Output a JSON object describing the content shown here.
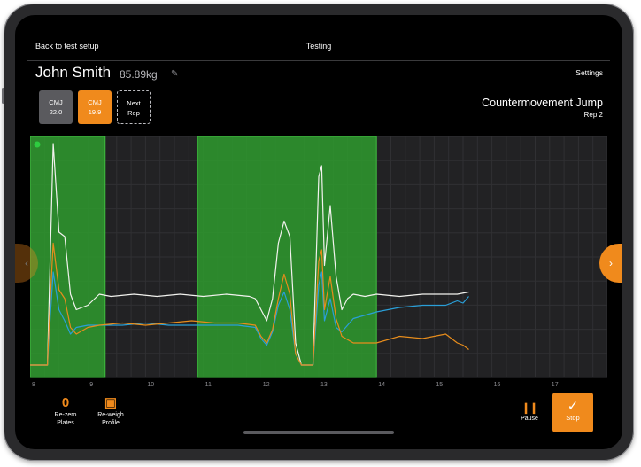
{
  "topbar": {
    "back_label": "Back to test setup",
    "title": "Testing"
  },
  "athlete": {
    "name": "John Smith",
    "weight": "85.89kg"
  },
  "settings_label": "Settings",
  "reps": [
    {
      "test": "CMJ",
      "value": "22.0",
      "state": "completed"
    },
    {
      "test": "CMJ",
      "value": "19.9",
      "state": "active"
    },
    {
      "label_line1": "Next",
      "label_line2": "Rep",
      "state": "next"
    }
  ],
  "test": {
    "name": "Countermovement Jump",
    "rep_label": "Rep 2"
  },
  "chart_data": {
    "type": "line",
    "x_ticks": [
      "8",
      "9",
      "10",
      "11",
      "12",
      "13",
      "14",
      "15",
      "16",
      "17"
    ],
    "xlim": [
      8,
      18
    ],
    "ylim": [
      0,
      1
    ],
    "grid": true,
    "colors": {
      "total": "#f2f2ee",
      "left": "#2a9fd8",
      "right": "#e88d1c",
      "highlight": "#2e9a2e"
    },
    "highlight_regions": [
      [
        8.0,
        9.3
      ],
      [
        10.9,
        14.0
      ]
    ],
    "series": [
      {
        "key": "total",
        "x": [
          8.0,
          8.2,
          8.3,
          8.35,
          8.4,
          8.5,
          8.6,
          8.7,
          8.8,
          9.0,
          9.2,
          9.4,
          9.8,
          10.2,
          10.6,
          11.0,
          11.4,
          11.8,
          11.9,
          12.0,
          12.1,
          12.2,
          12.3,
          12.4,
          12.5,
          12.6,
          12.7,
          12.8,
          12.9,
          13.0,
          13.05,
          13.1,
          13.2,
          13.3,
          13.4,
          13.5,
          13.6,
          13.8,
          14.0,
          14.4,
          14.8,
          15.2,
          15.4,
          15.6
        ],
        "y": [
          0.0,
          0.0,
          0.0,
          0.5,
          1.0,
          0.6,
          0.58,
          0.32,
          0.25,
          0.27,
          0.32,
          0.31,
          0.32,
          0.31,
          0.32,
          0.31,
          0.32,
          0.31,
          0.3,
          0.25,
          0.2,
          0.3,
          0.55,
          0.65,
          0.58,
          0.1,
          0.0,
          0.0,
          0.0,
          0.85,
          0.9,
          0.45,
          0.72,
          0.4,
          0.25,
          0.3,
          0.32,
          0.31,
          0.32,
          0.31,
          0.32,
          0.32,
          0.32,
          0.33
        ]
      },
      {
        "key": "left",
        "x": [
          8.0,
          8.2,
          8.3,
          8.35,
          8.4,
          8.5,
          8.6,
          8.7,
          8.8,
          9.0,
          9.2,
          9.6,
          10.0,
          10.4,
          10.8,
          11.2,
          11.6,
          11.9,
          12.0,
          12.1,
          12.2,
          12.3,
          12.4,
          12.5,
          12.6,
          12.7,
          12.8,
          12.9,
          13.0,
          13.05,
          13.1,
          13.2,
          13.3,
          13.4,
          13.6,
          14.0,
          14.4,
          14.8,
          15.2,
          15.4,
          15.5,
          15.6
        ],
        "y": [
          0.0,
          0.0,
          0.0,
          0.22,
          0.42,
          0.25,
          0.2,
          0.14,
          0.17,
          0.18,
          0.18,
          0.18,
          0.19,
          0.18,
          0.18,
          0.18,
          0.18,
          0.17,
          0.12,
          0.09,
          0.15,
          0.27,
          0.33,
          0.25,
          0.05,
          0.0,
          0.0,
          0.0,
          0.36,
          0.42,
          0.2,
          0.3,
          0.17,
          0.15,
          0.21,
          0.24,
          0.26,
          0.27,
          0.27,
          0.29,
          0.28,
          0.31
        ]
      },
      {
        "key": "right",
        "x": [
          8.0,
          8.2,
          8.3,
          8.35,
          8.4,
          8.5,
          8.6,
          8.7,
          8.8,
          9.0,
          9.2,
          9.6,
          10.0,
          10.4,
          10.8,
          11.2,
          11.6,
          11.9,
          12.0,
          12.1,
          12.2,
          12.3,
          12.4,
          12.5,
          12.6,
          12.7,
          12.8,
          12.9,
          13.0,
          13.05,
          13.1,
          13.2,
          13.3,
          13.4,
          13.6,
          14.0,
          14.4,
          14.8,
          15.2,
          15.4,
          15.5,
          15.6
        ],
        "y": [
          0.0,
          0.0,
          0.0,
          0.3,
          0.55,
          0.34,
          0.3,
          0.17,
          0.14,
          0.17,
          0.18,
          0.19,
          0.18,
          0.19,
          0.2,
          0.19,
          0.19,
          0.18,
          0.13,
          0.1,
          0.16,
          0.3,
          0.41,
          0.32,
          0.05,
          0.0,
          0.0,
          0.0,
          0.47,
          0.52,
          0.25,
          0.4,
          0.21,
          0.13,
          0.1,
          0.1,
          0.13,
          0.12,
          0.14,
          0.1,
          0.09,
          0.07
        ]
      }
    ]
  },
  "tools": {
    "rezero_line1": "Re-zero",
    "rezero_line2": "Plates",
    "reweigh_line1": "Re-weigh",
    "reweigh_line2": "Profile"
  },
  "controls": {
    "pause_label": "Pause",
    "stop_label": "Stop"
  },
  "icons": {
    "rezero": "zero-icon",
    "reweigh": "scale-icon",
    "pause": "pause-icon",
    "stop": "check-icon",
    "edit": "edit-icon",
    "next": "chevron-right-icon",
    "prev": "chevron-left-icon"
  },
  "accent": "#f08a1c"
}
